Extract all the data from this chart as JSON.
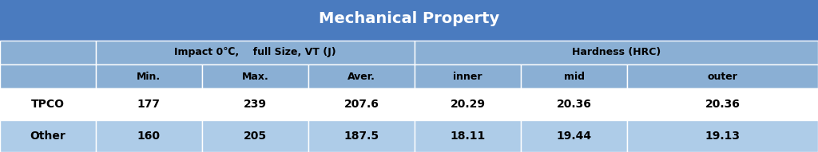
{
  "title": "Mechanical Property",
  "title_bg": "#4A7BBF",
  "table_bg_dark": "#8AAFD4",
  "table_bg_light": "#AECCE8",
  "row_bg_white": "#FFFFFF",
  "border_color": "#FFFFFF",
  "text_dark": "#000000",
  "title_color": "#FFFFFF",
  "col_starts": [
    0.0,
    0.117,
    0.247,
    0.377,
    0.507,
    0.637,
    0.767
  ],
  "col_ends": [
    0.117,
    0.247,
    0.377,
    0.507,
    0.637,
    0.767,
    1.0
  ],
  "header1_labels": [
    {
      "text": "",
      "span": [
        0,
        0
      ]
    },
    {
      "text": "Impact 0℃,    full Size, VT (J)",
      "span": [
        1,
        3
      ]
    },
    {
      "text": "Hardness (HRC)",
      "span": [
        4,
        6
      ]
    }
  ],
  "header2_labels": [
    "",
    "Min.",
    "Max.",
    "Aver.",
    "inner",
    "mid",
    "outer"
  ],
  "rows": [
    [
      "TPCO",
      "177",
      "239",
      "207.6",
      "20.29",
      "20.36",
      "20.36"
    ],
    [
      "Other",
      "160",
      "205",
      "187.5",
      "18.11",
      "19.44",
      "19.13"
    ]
  ],
  "figsize": [
    10.24,
    1.91
  ],
  "dpi": 100
}
